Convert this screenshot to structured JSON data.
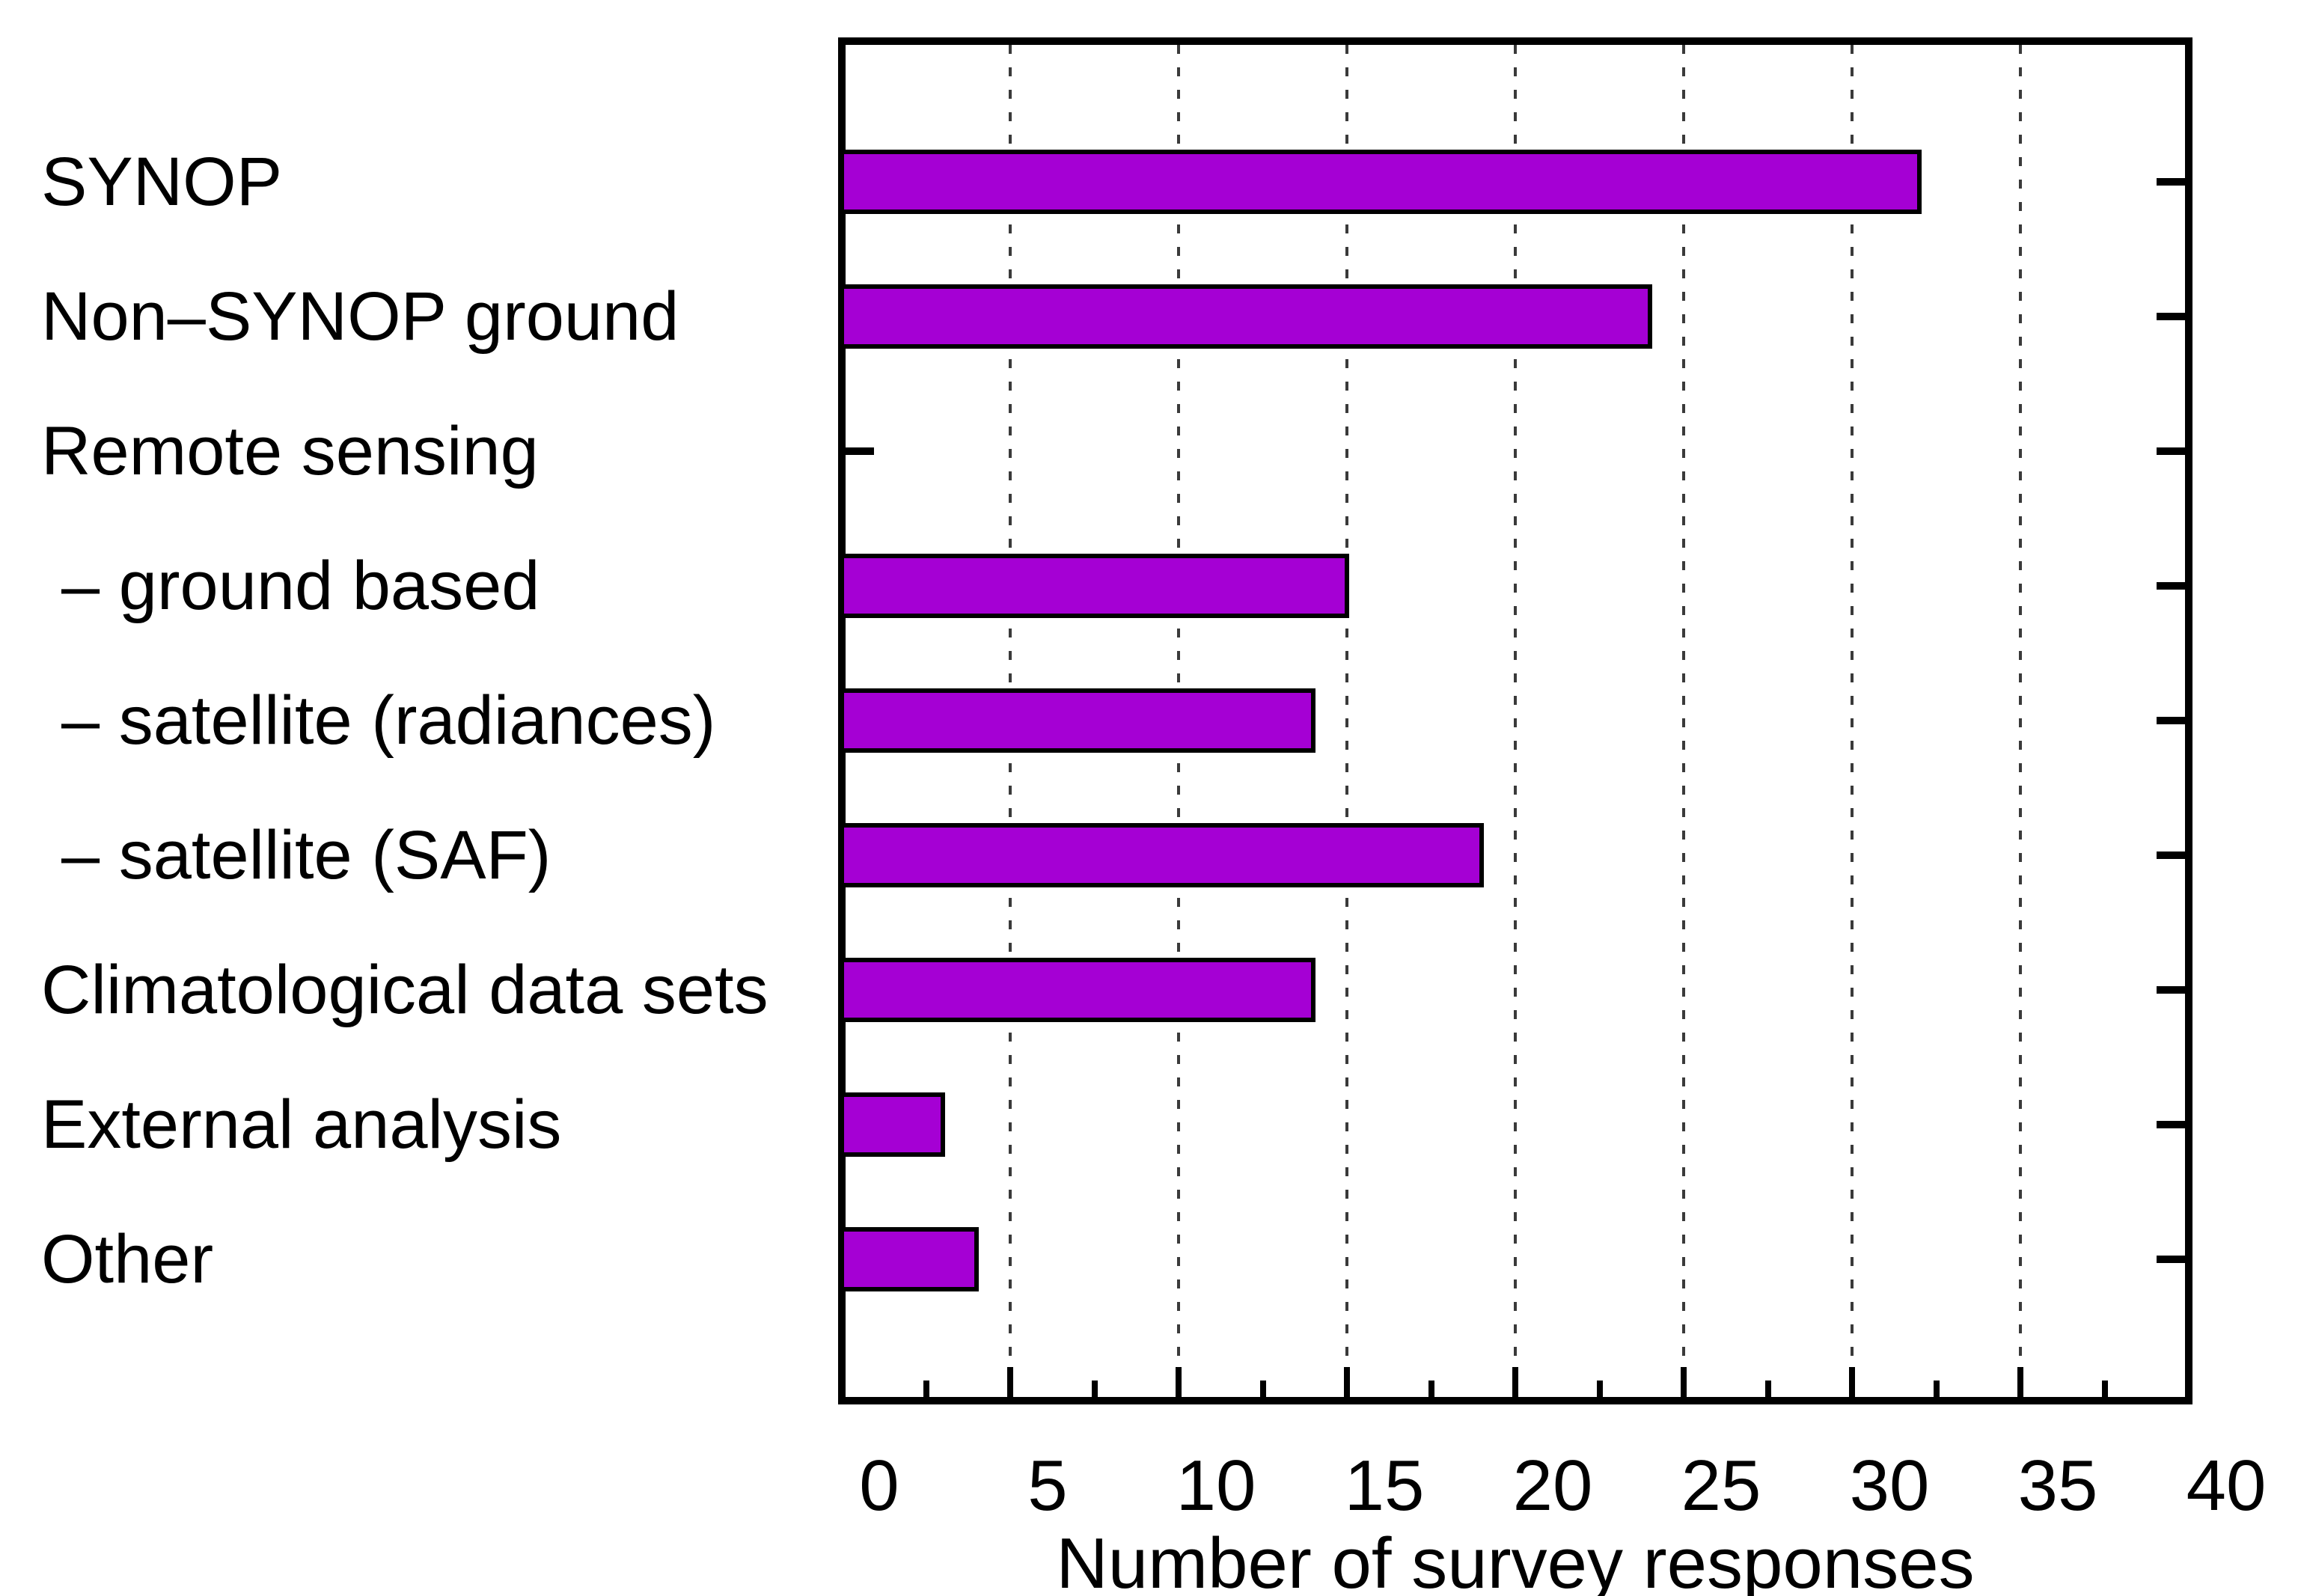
{
  "chart_data": {
    "type": "bar",
    "orientation": "horizontal",
    "xlabel": "Number of survey responses",
    "categories": [
      "SYNOP",
      "Non–SYNOP ground",
      "Remote sensing",
      "– ground based",
      "– satellite (radiances)",
      "– satellite (SAF)",
      "Climatological data sets",
      "External analysis",
      "Other"
    ],
    "values": [
      32,
      24,
      0,
      15,
      14,
      19,
      14,
      3,
      4
    ],
    "sub_item_flags": [
      false,
      false,
      false,
      true,
      true,
      true,
      false,
      false,
      false
    ],
    "no_bar_rows": [
      "Remote sensing"
    ],
    "xlim": [
      0,
      40
    ],
    "xticks": [
      0,
      5,
      10,
      15,
      20,
      25,
      30,
      35,
      40
    ],
    "x_minor_tick_step": 2.5,
    "grid": {
      "vertical_dashed_at_major_ticks": true,
      "gridline_at_0_and_40": false
    },
    "legend": null,
    "colors": {
      "bar_fill": "#A500D4",
      "bar_border": "#000000",
      "axis": "#000000",
      "grid": "#3A3A3A",
      "background": "#FFFFFF",
      "text": "#000000"
    }
  }
}
